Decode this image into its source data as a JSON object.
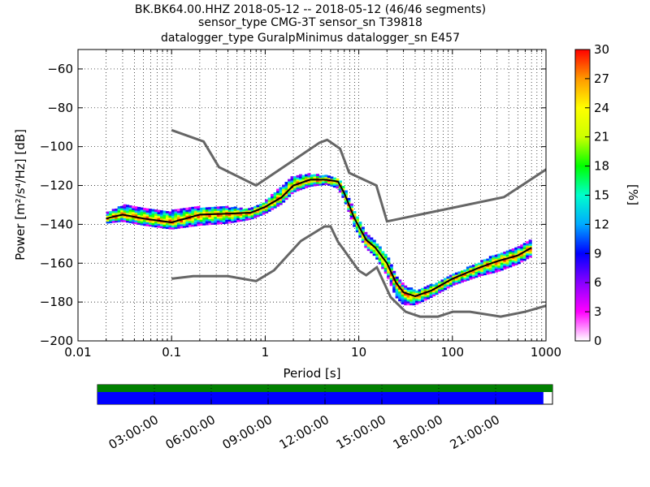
{
  "chart_data": {
    "type": "heatmap",
    "title": [
      "BK.BK64.00.HHZ   2018-05-12 -- 2018-05-12  (46/46 segments)",
      "sensor_type CMG-3T sensor_sn T39818",
      "datalogger_type GuralpMinimus datalogger_sn E457"
    ],
    "xlabel": "Period [s]",
    "ylabel": "Power [m²/s⁴/Hz] [dB]",
    "x_scale": "log",
    "xlim": [
      0.01,
      1000
    ],
    "ylim": [
      -200,
      -50
    ],
    "x_ticks": [
      0.01,
      0.1,
      1,
      10,
      100,
      1000
    ],
    "x_tick_labels": [
      "0.01",
      "0.1",
      "1",
      "10",
      "100",
      "1000"
    ],
    "y_ticks": [
      -200,
      -180,
      -160,
      -140,
      -120,
      -100,
      -80,
      -60
    ],
    "y_tick_labels": [
      "−200",
      "−180",
      "−160",
      "−140",
      "−120",
      "−100",
      "−80",
      "−60"
    ],
    "grid": "dotted-vertical",
    "colorbar": {
      "label": "[%]",
      "range": [
        0,
        30
      ],
      "ticks": [
        0,
        3,
        6,
        9,
        12,
        15,
        18,
        21,
        24,
        27,
        30
      ],
      "tick_labels": [
        "0",
        "3",
        "6",
        "9",
        "12",
        "15",
        "18",
        "21",
        "24",
        "27",
        "30"
      ],
      "colors": [
        "#ffffff",
        "#ff00ff",
        "#8800ff",
        "#0000ff",
        "#00aaff",
        "#00ffcc",
        "#00ff00",
        "#ccff00",
        "#ffff00",
        "#ff9900",
        "#ff0000"
      ]
    },
    "noise_models": [
      {
        "name": "NHNM",
        "x": [
          0.1,
          0.22,
          0.32,
          0.8,
          3.8,
          4.6,
          6.3,
          7.9,
          15.4,
          20,
          354.8,
          10000
        ],
        "y": [
          -91.5,
          -97.4,
          -110.5,
          -120,
          -98,
          -96.5,
          -101,
          -113.5,
          -120,
          -138.5,
          -126,
          -80.1
        ]
      },
      {
        "name": "NLNM",
        "x": [
          0.1,
          0.17,
          0.4,
          0.8,
          1.24,
          2.4,
          4.3,
          5.0,
          6.0,
          10.0,
          12.0,
          15.6,
          21.9,
          31.6,
          45,
          70,
          101,
          154,
          328,
          600,
          10000
        ],
        "y": [
          -168,
          -166.7,
          -166.7,
          -169.2,
          -163.7,
          -148.6,
          -141.1,
          -141.1,
          -149,
          -163.8,
          -166.2,
          -162.1,
          -177.5,
          -185,
          -187.5,
          -187.5,
          -185,
          -185,
          -187.5,
          -185,
          -168
        ]
      },
      {
        "name": "median",
        "x": [
          0.02,
          0.03,
          0.05,
          0.1,
          0.2,
          0.4,
          0.7,
          1.0,
          1.5,
          2.0,
          3.0,
          4.5,
          6.0,
          7.0,
          9.0,
          12.0,
          15.0,
          20.0,
          25.0,
          30.0,
          40.0,
          60.0,
          100.0,
          200.0,
          300.0,
          500.0,
          700.0
        ],
        "y": [
          -137,
          -135,
          -137,
          -139,
          -135,
          -134.5,
          -134,
          -131,
          -126,
          -120,
          -117,
          -117,
          -118,
          -124,
          -137,
          -148,
          -152,
          -160,
          -170,
          -175,
          -177,
          -174,
          -168,
          -162,
          -159,
          -156,
          -152
        ]
      }
    ],
    "psd_spread": {
      "x": [
        0.02,
        0.03,
        0.05,
        0.1,
        0.2,
        0.4,
        0.7,
        1.0,
        1.5,
        2.0,
        3.0,
        4.5,
        6.0,
        7.0,
        9.0,
        12.0,
        15.0,
        20.0,
        25.0,
        30.0,
        40.0,
        60.0,
        100.0,
        200.0,
        300.0,
        500.0,
        700.0
      ],
      "upper": [
        -134,
        -130,
        -132,
        -133,
        -131,
        -131,
        -132,
        -128,
        -120,
        -115,
        -114,
        -115,
        -116,
        -121,
        -133,
        -145,
        -149,
        -156,
        -166,
        -171,
        -174,
        -171,
        -166,
        -159,
        -155,
        -152,
        -148
      ],
      "lower": [
        -139,
        -138,
        -140,
        -142,
        -140,
        -139,
        -137,
        -134,
        -129,
        -123,
        -120,
        -119,
        -121,
        -127,
        -141,
        -152,
        -156,
        -166,
        -177,
        -181,
        -181,
        -177,
        -171,
        -166,
        -164,
        -160,
        -156
      ]
    },
    "time_coverage": {
      "ticks": [
        "03:00:00",
        "06:00:00",
        "09:00:00",
        "12:00:00",
        "15:00:00",
        "18:00:00",
        "21:00:00"
      ],
      "green_coverage": [
        0,
        1
      ],
      "blue_coverage": [
        0,
        0.98
      ]
    }
  }
}
